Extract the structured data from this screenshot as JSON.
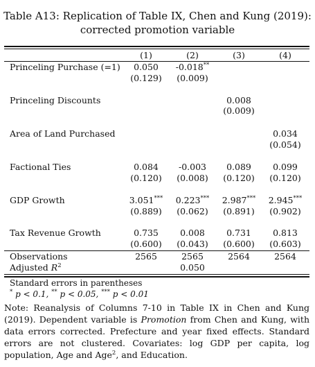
{
  "caption": {
    "line1": "Table A13: Replication of Table IX, Chen and Kung (2019):",
    "line2": "corrected promotion variable"
  },
  "columns": [
    "(1)",
    "(2)",
    "(3)",
    "(4)"
  ],
  "rows": [
    {
      "label": "Princeling Purchase (=1)",
      "coef": [
        {
          "v": "0.050",
          "s": ""
        },
        {
          "v": "-0.018",
          "s": "**"
        },
        {
          "v": "",
          "s": ""
        },
        {
          "v": "",
          "s": ""
        }
      ],
      "se": [
        "(0.129)",
        "(0.009)",
        "",
        ""
      ]
    },
    {
      "label": "Princeling Discounts",
      "coef": [
        {
          "v": "",
          "s": ""
        },
        {
          "v": "",
          "s": ""
        },
        {
          "v": "0.008",
          "s": ""
        },
        {
          "v": "",
          "s": ""
        }
      ],
      "se": [
        "",
        "",
        "(0.009)",
        ""
      ]
    },
    {
      "label": "Area of Land Purchased",
      "coef": [
        {
          "v": "",
          "s": ""
        },
        {
          "v": "",
          "s": ""
        },
        {
          "v": "",
          "s": ""
        },
        {
          "v": "0.034",
          "s": ""
        }
      ],
      "se": [
        "",
        "",
        "",
        "(0.054)"
      ]
    },
    {
      "label": "Factional Ties",
      "coef": [
        {
          "v": "0.084",
          "s": ""
        },
        {
          "v": "-0.003",
          "s": ""
        },
        {
          "v": "0.089",
          "s": ""
        },
        {
          "v": "0.099",
          "s": ""
        }
      ],
      "se": [
        "(0.120)",
        "(0.008)",
        "(0.120)",
        "(0.120)"
      ]
    },
    {
      "label": "GDP Growth",
      "coef": [
        {
          "v": "3.051",
          "s": "***"
        },
        {
          "v": "0.223",
          "s": "***"
        },
        {
          "v": "2.987",
          "s": "***"
        },
        {
          "v": "2.945",
          "s": "***"
        }
      ],
      "se": [
        "(0.889)",
        "(0.062)",
        "(0.891)",
        "(0.902)"
      ]
    },
    {
      "label": "Tax Revenue Growth",
      "coef": [
        {
          "v": "0.735",
          "s": ""
        },
        {
          "v": "0.008",
          "s": ""
        },
        {
          "v": "0.731",
          "s": ""
        },
        {
          "v": "0.813",
          "s": ""
        }
      ],
      "se": [
        "(0.600)",
        "(0.043)",
        "(0.600)",
        "(0.603)"
      ]
    }
  ],
  "stats": {
    "observations_label": "Observations",
    "observations": [
      "2565",
      "2565",
      "2564",
      "2564"
    ],
    "adjr2_label_base": "Adjusted ",
    "adjr2_label_var": "R",
    "adjr2_label_sup": "2",
    "adjr2": [
      "",
      "0.050",
      "",
      ""
    ]
  },
  "footnotes": {
    "se_note": "Standard errors in parentheses",
    "stars": [
      {
        "sym": "*",
        "text": " p < 0.1, "
      },
      {
        "sym": "**",
        "text": " p < 0.05, "
      },
      {
        "sym": "***",
        "text": " p < 0.01"
      }
    ]
  },
  "note": {
    "part1": "Note: Reanalysis of Columns 7-10 in Table IX in Chen and Kung (2019). Dependent variable is ",
    "italic": "Promotion",
    "part2": " from Chen and Kung, with data errors corrected. Prefecture and year fixed effects. Standard errors are not clustered. Covariates: log GDP per capita, log population, Age and Age",
    "sup": "2",
    "part3": ", and Education."
  }
}
